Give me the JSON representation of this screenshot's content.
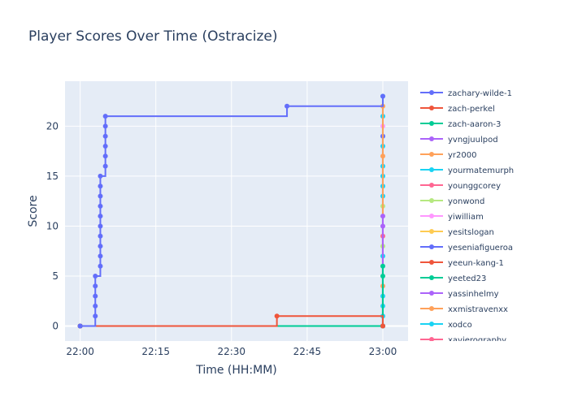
{
  "chart_data": {
    "type": "line",
    "title": "Player Scores Over Time (Ostracize)",
    "xlabel": "Time (HH:MM)",
    "ylabel": "Score",
    "x_ticks": [
      "22:00",
      "22:15",
      "22:30",
      "22:45",
      "23:00"
    ],
    "y_ticks": [
      0,
      5,
      10,
      15,
      20
    ],
    "xlim": [
      "21:57",
      "23:05"
    ],
    "ylim": [
      -1.5,
      24.5
    ],
    "grid": true,
    "legend_position": "right",
    "plot_background": "#e5ecf6",
    "series": [
      {
        "name": "zachary-wilde-1",
        "color": "#636efa",
        "line_shape": "hv",
        "points": [
          [
            "22:00",
            0
          ],
          [
            "22:03",
            1
          ],
          [
            "22:03",
            2
          ],
          [
            "22:03",
            3
          ],
          [
            "22:03",
            4
          ],
          [
            "22:03",
            5
          ],
          [
            "22:04",
            6
          ],
          [
            "22:04",
            7
          ],
          [
            "22:04",
            8
          ],
          [
            "22:04",
            9
          ],
          [
            "22:04",
            10
          ],
          [
            "22:04",
            11
          ],
          [
            "22:04",
            12
          ],
          [
            "22:04",
            13
          ],
          [
            "22:04",
            14
          ],
          [
            "22:04",
            15
          ],
          [
            "22:05",
            16
          ],
          [
            "22:05",
            17
          ],
          [
            "22:05",
            18
          ],
          [
            "22:05",
            19
          ],
          [
            "22:05",
            20
          ],
          [
            "22:05",
            21
          ],
          [
            "22:41",
            22
          ],
          [
            "23:00",
            23
          ]
        ]
      },
      {
        "name": "zach-perkel",
        "color": "#EF553B",
        "line_shape": "hv",
        "points": [
          [
            "22:00",
            0
          ],
          [
            "22:39",
            1
          ],
          [
            "23:00",
            0
          ]
        ]
      },
      {
        "name": "zach-aaron-3",
        "color": "#00cc96",
        "line_shape": "hv",
        "points": [
          [
            "22:00",
            0
          ],
          [
            "23:00",
            0
          ],
          [
            "23:00",
            5
          ],
          [
            "23:00",
            6
          ]
        ]
      },
      {
        "name": "yvngjuulpod",
        "color": "#ab63fa",
        "line_shape": "hv",
        "points": [
          [
            "22:00",
            0
          ],
          [
            "23:00",
            0
          ],
          [
            "23:00",
            10
          ],
          [
            "23:00",
            11
          ]
        ]
      },
      {
        "name": "yr2000",
        "color": "#FFA15A",
        "line_shape": "hv",
        "points": [
          [
            "22:00",
            0
          ],
          [
            "23:00",
            0
          ],
          [
            "23:00",
            4
          ],
          [
            "23:00",
            17
          ],
          [
            "23:00",
            22
          ]
        ]
      },
      {
        "name": "yourmatemurph",
        "color": "#19d3f3",
        "line_shape": "hv",
        "points": [
          [
            "22:00",
            0
          ],
          [
            "23:00",
            0
          ],
          [
            "23:00",
            1
          ],
          [
            "23:00",
            2
          ],
          [
            "23:00",
            3
          ],
          [
            "23:00",
            7
          ],
          [
            "23:00",
            13
          ],
          [
            "23:00",
            14
          ],
          [
            "23:00",
            15
          ],
          [
            "23:00",
            16
          ],
          [
            "23:00",
            18
          ],
          [
            "23:00",
            21
          ],
          [
            "23:00",
            23
          ]
        ]
      },
      {
        "name": "younggcorey",
        "color": "#FF6692",
        "line_shape": "hv",
        "points": [
          [
            "22:00",
            0
          ],
          [
            "23:00",
            0
          ],
          [
            "23:00",
            9
          ]
        ]
      },
      {
        "name": "yonwond",
        "color": "#B6E880",
        "line_shape": "hv",
        "points": [
          [
            "22:00",
            0
          ],
          [
            "23:00",
            0
          ],
          [
            "23:00",
            8
          ],
          [
            "23:00",
            12
          ]
        ]
      },
      {
        "name": "yiwilliam",
        "color": "#FF97FF",
        "line_shape": "hv",
        "points": [
          [
            "22:00",
            0
          ],
          [
            "23:00",
            0
          ],
          [
            "23:00",
            20
          ]
        ]
      },
      {
        "name": "yesitslogan",
        "color": "#FECB52",
        "line_shape": "hv",
        "points": [
          [
            "22:00",
            0
          ],
          [
            "23:00",
            0
          ]
        ]
      },
      {
        "name": "yeseniafigueroa",
        "color": "#636efa",
        "line_shape": "hv",
        "points": [
          [
            "22:00",
            0
          ],
          [
            "23:00",
            0
          ],
          [
            "23:00",
            19
          ]
        ]
      },
      {
        "name": "yeeun-kang-1",
        "color": "#EF553B",
        "line_shape": "hv",
        "points": [
          [
            "22:00",
            0
          ],
          [
            "23:00",
            0
          ]
        ]
      },
      {
        "name": "yeeted23",
        "color": "#00cc96",
        "line_shape": "hv",
        "points": [
          [
            "22:00",
            0
          ],
          [
            "23:00",
            0
          ]
        ]
      },
      {
        "name": "yassinhelmy",
        "color": "#ab63fa",
        "line_shape": "hv",
        "points": [
          [
            "22:00",
            0
          ],
          [
            "23:00",
            0
          ]
        ]
      },
      {
        "name": "xxmistravenxx",
        "color": "#FFA15A",
        "line_shape": "hv",
        "points": [
          [
            "22:00",
            0
          ],
          [
            "23:00",
            0
          ]
        ]
      },
      {
        "name": "xodco",
        "color": "#19d3f3",
        "line_shape": "hv",
        "points": [
          [
            "22:00",
            0
          ],
          [
            "23:00",
            0
          ]
        ]
      },
      {
        "name": "xavierography",
        "color": "#FF6692",
        "line_shape": "hv",
        "points": [
          [
            "22:00",
            0
          ],
          [
            "23:00",
            0
          ]
        ]
      }
    ]
  }
}
